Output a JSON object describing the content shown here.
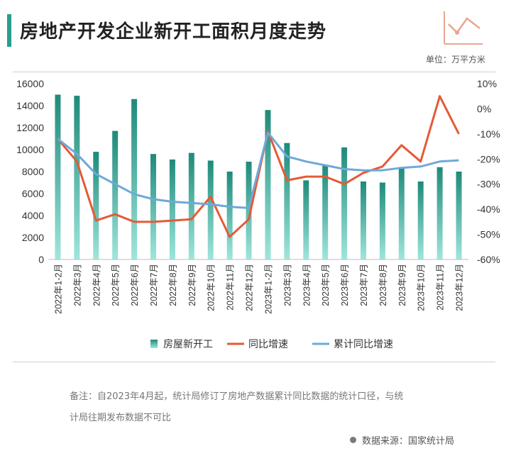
{
  "header": {
    "title": "房地产开发企业新开工面积月度走势",
    "unit": "单位：万平方米"
  },
  "footer": {
    "note_line1": "备注：自2023年4月起，统计局修订了房地产数据累计同比数据的统计口径，与统",
    "note_line2": "计局往期发布数据不可比",
    "source": "数据来源：国家统计局"
  },
  "colors": {
    "bar_top": "#1e8a7a",
    "bar_bottom": "#9fe6dc",
    "line_yoy": "#e45a36",
    "line_cum": "#6ea9d8",
    "accent": "#2a9d8f"
  },
  "chart_data": {
    "type": "bar",
    "categories": [
      "2022年1-2月",
      "2022年3月",
      "2022年4月",
      "2022年5月",
      "2022年6月",
      "2022年7月",
      "2022年8月",
      "2022年9月",
      "2022年10月",
      "2022年11月",
      "2022年12月",
      "2023年1-2月",
      "2023年3月",
      "2023年4月",
      "2023年5月",
      "2023年6月",
      "2023年7月",
      "2023年8月",
      "2023年9月",
      "2023年10月",
      "2023年11月",
      "2023年12月"
    ],
    "series": [
      {
        "name": "房屋新开工",
        "type": "bar",
        "axis": "left",
        "values": [
          15000,
          14900,
          9800,
          11700,
          14600,
          9600,
          9100,
          9700,
          9000,
          8000,
          8900,
          13600,
          10600,
          7200,
          8600,
          10200,
          7100,
          7000,
          8400,
          7100,
          8400,
          8000
        ]
      },
      {
        "name": "同比增速",
        "type": "line",
        "axis": "right",
        "values": [
          -12,
          -21,
          -44.5,
          -42,
          -45,
          -45,
          -44.5,
          -44,
          -35,
          -51,
          -44,
          -9,
          -28.5,
          -27,
          -27,
          -30,
          -25.5,
          -23,
          -14.5,
          -21,
          5,
          -10
        ]
      },
      {
        "name": "累计同比增速",
        "type": "line",
        "axis": "right",
        "values": [
          -12,
          -18,
          -26,
          -30,
          -34,
          -36,
          -37,
          -37.5,
          -38,
          -39,
          -39.5,
          -9.5,
          -19,
          -21,
          -22.5,
          -24,
          -24.5,
          -24.5,
          -23.5,
          -23,
          -21,
          -20.5
        ]
      }
    ],
    "y_left": {
      "min": 0,
      "max": 16000,
      "ticks": [
        0,
        2000,
        4000,
        6000,
        8000,
        10000,
        12000,
        14000,
        16000
      ]
    },
    "y_right": {
      "min": -60,
      "max": 10,
      "ticks": [
        "10%",
        "0%",
        "-10%",
        "-20%",
        "-30%",
        "-40%",
        "-50%",
        "-60%"
      ]
    },
    "grid": false,
    "legend_position": "bottom",
    "legend": [
      "房屋新开工",
      "同比增速",
      "累计同比增速"
    ]
  }
}
